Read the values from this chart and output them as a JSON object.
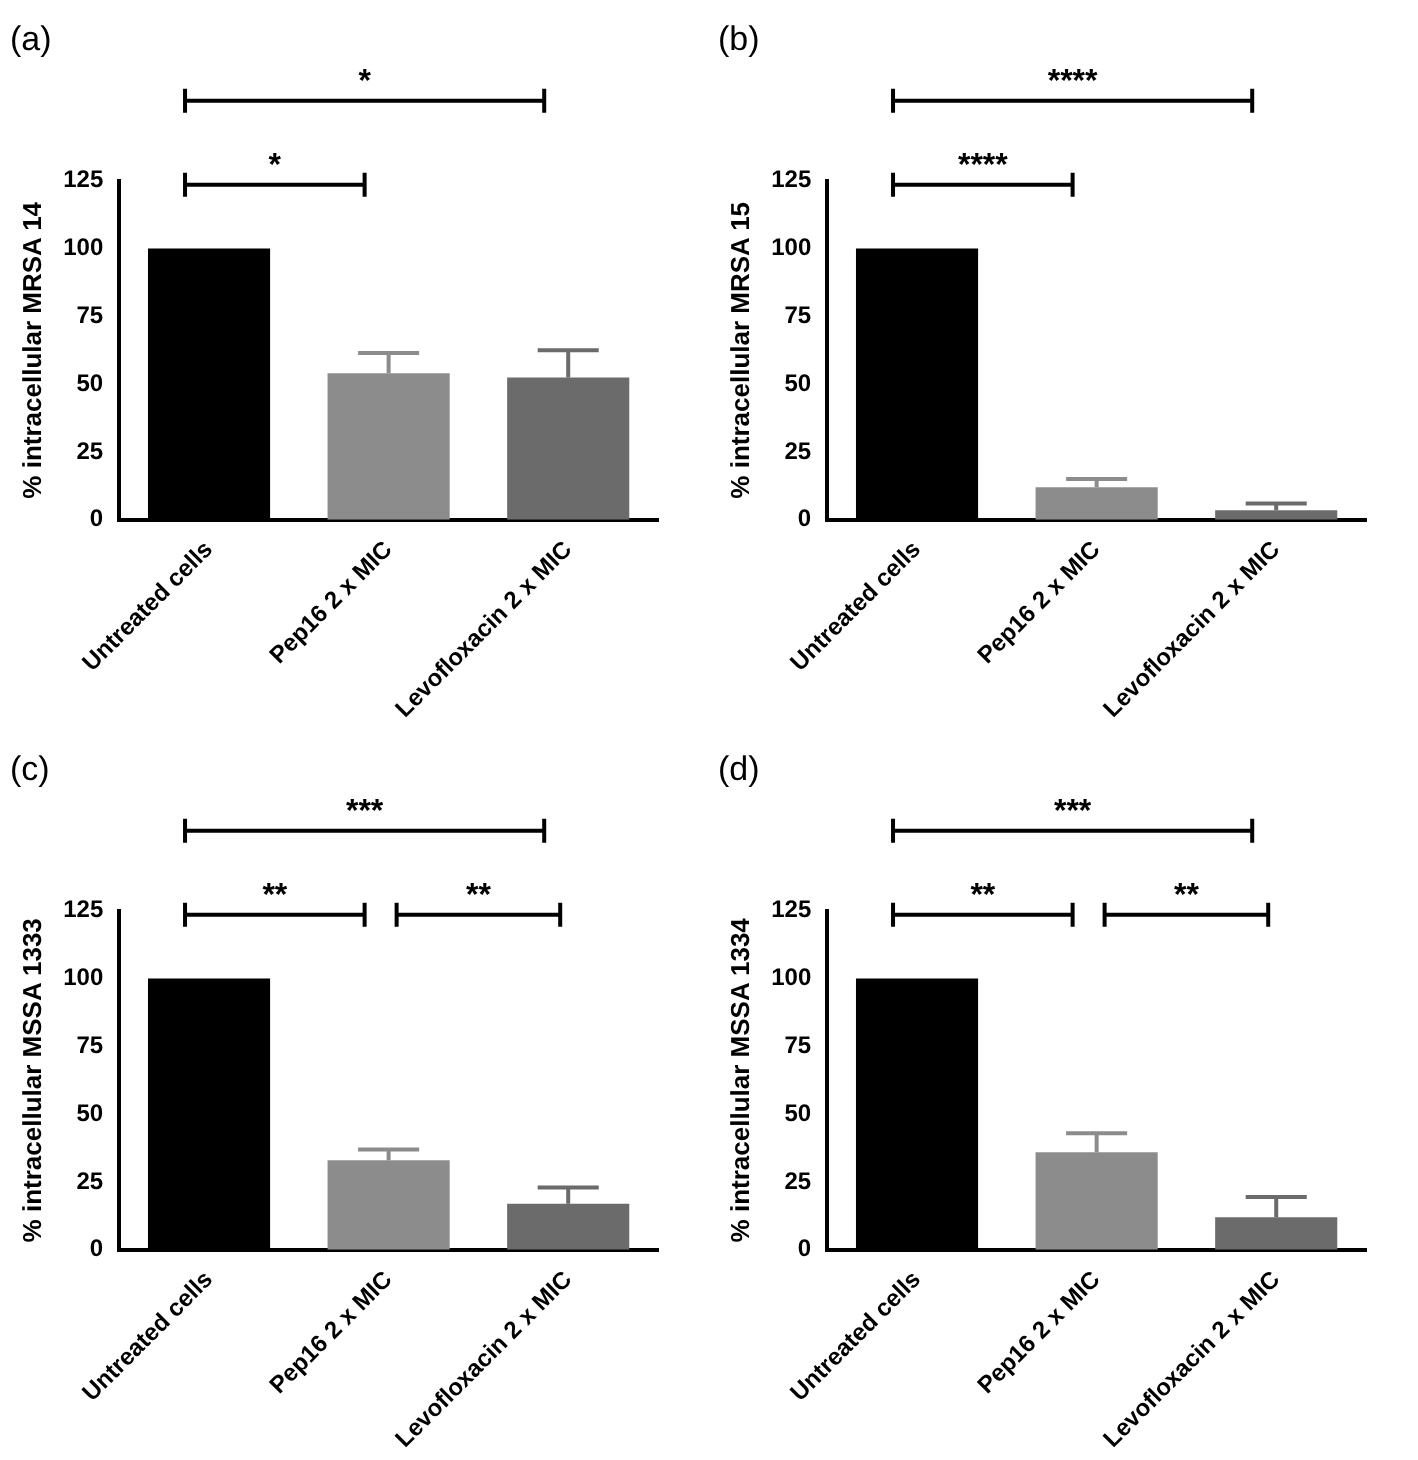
{
  "chart_data": [
    {
      "type": "bar",
      "title": "(a)",
      "ylabel": "% intracellular MRSA 14",
      "categories": [
        "Untreated cells",
        "Pep16 2 x MIC",
        "Levofloxacin 2 x MIC"
      ],
      "values": [
        100,
        54,
        52.5
      ],
      "colors": [
        "#000000",
        "#8c8c8c",
        "#6b6b6b"
      ],
      "errors": [
        null,
        [
          54,
          61.5
        ],
        [
          52.5,
          62.5
        ]
      ],
      "ylim": [
        0,
        125
      ],
      "yticks": [
        0,
        25,
        50,
        75,
        100,
        125
      ],
      "grid": false,
      "legend": false,
      "annotations": [
        "*",
        "*"
      ]
    },
    {
      "type": "bar",
      "title": "(b)",
      "ylabel": "% intracellular MRSA 15",
      "categories": [
        "Untreated cells",
        "Pep16 2 x MIC",
        "Levofloxacin 2 x MIC"
      ],
      "values": [
        100,
        12,
        3.5
      ],
      "colors": [
        "#000000",
        "#8c8c8c",
        "#6b6b6b"
      ],
      "errors": [
        null,
        [
          12,
          15
        ],
        [
          3.5,
          6
        ]
      ],
      "ylim": [
        0,
        125
      ],
      "yticks": [
        0,
        25,
        50,
        75,
        100,
        125
      ],
      "grid": false,
      "legend": false,
      "annotations": [
        "****",
        "****"
      ]
    },
    {
      "type": "bar",
      "title": "(c)",
      "ylabel": "% intracellular MSSA 1333",
      "categories": [
        "Untreated cells",
        "Pep16 2 x MIC",
        "Levofloxacin 2 x MIC"
      ],
      "values": [
        100,
        33,
        17
      ],
      "colors": [
        "#000000",
        "#8c8c8c",
        "#6b6b6b"
      ],
      "errors": [
        null,
        [
          33,
          37
        ],
        [
          17,
          23
        ]
      ],
      "ylim": [
        0,
        125
      ],
      "yticks": [
        0,
        25,
        50,
        75,
        100,
        125
      ],
      "grid": false,
      "legend": false,
      "annotations": [
        "***",
        "**",
        "**"
      ]
    },
    {
      "type": "bar",
      "title": "(d)",
      "ylabel": "% intracellular MSSA 1334",
      "categories": [
        "Untreated cells",
        "Pep16 2 x MIC",
        "Levofloxacin 2 x MIC"
      ],
      "values": [
        100,
        36,
        12
      ],
      "colors": [
        "#000000",
        "#8c8c8c",
        "#6b6b6b"
      ],
      "errors": [
        null,
        [
          36,
          43
        ],
        [
          12,
          19.5
        ]
      ],
      "ylim": [
        0,
        125
      ],
      "yticks": [
        0,
        25,
        50,
        75,
        100,
        125
      ],
      "grid": false,
      "legend": false,
      "annotations": [
        "***",
        "**",
        "**"
      ]
    }
  ]
}
